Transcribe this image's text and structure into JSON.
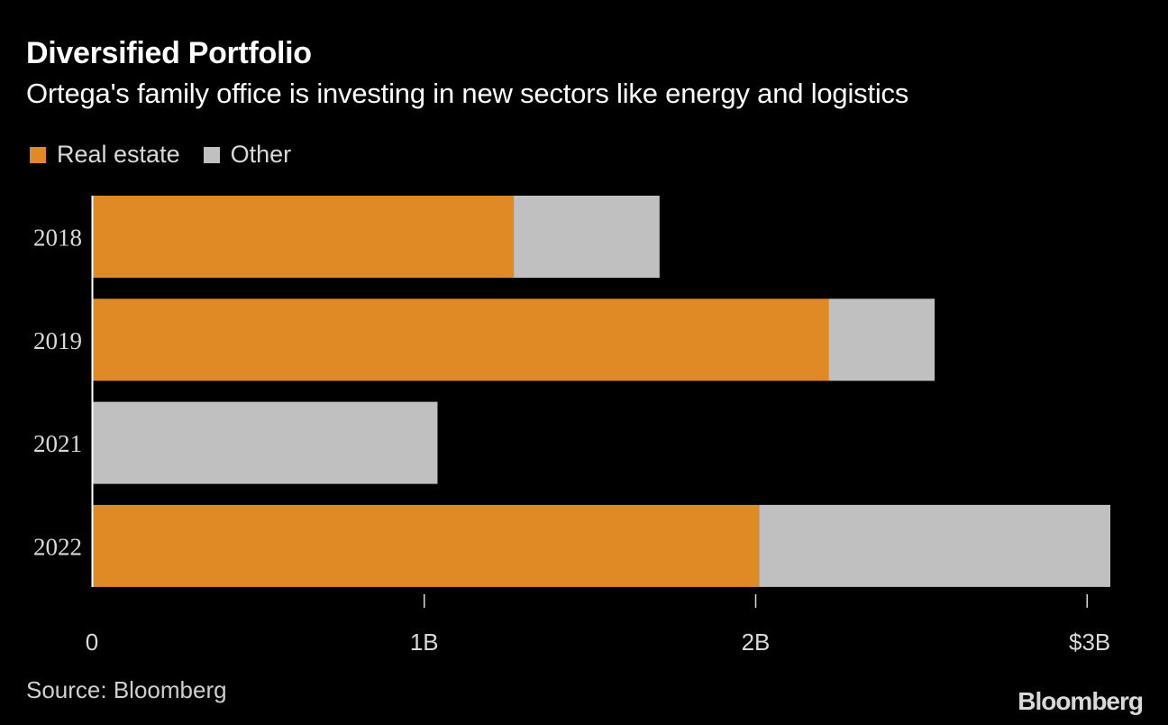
{
  "header": {
    "title": "Diversified Portfolio",
    "subtitle": "Ortega's family office is investing in new sectors like energy and logistics"
  },
  "legend": {
    "items": [
      {
        "label": "Real estate",
        "color": "#e08a26"
      },
      {
        "label": "Other",
        "color": "#c0c0c0"
      }
    ]
  },
  "footer": {
    "source": "Source: Bloomberg",
    "brand": "Bloomberg"
  },
  "chart_data": {
    "type": "bar",
    "orientation": "horizontal",
    "stacked": true,
    "title": "Diversified Portfolio",
    "subtitle": "Ortega's family office is investing in new sectors like energy and logistics",
    "categories": [
      "2018",
      "2019",
      "2021",
      "2022"
    ],
    "series": [
      {
        "name": "Real estate",
        "color": "#e08a26",
        "values": [
          1.27,
          2.22,
          0,
          2.01
        ]
      },
      {
        "name": "Other",
        "color": "#c0c0c0",
        "values": [
          0.44,
          0.32,
          1.04,
          1.06
        ]
      }
    ],
    "xlim": [
      0,
      3.07
    ],
    "xticks": [
      {
        "value": 0,
        "label": "0"
      },
      {
        "value": 1,
        "label": "1B"
      },
      {
        "value": 2,
        "label": "2B"
      },
      {
        "value": 3,
        "label": "$3B"
      }
    ],
    "xlabel": "",
    "ylabel": "",
    "legend_position": "top-left",
    "grid": false
  }
}
